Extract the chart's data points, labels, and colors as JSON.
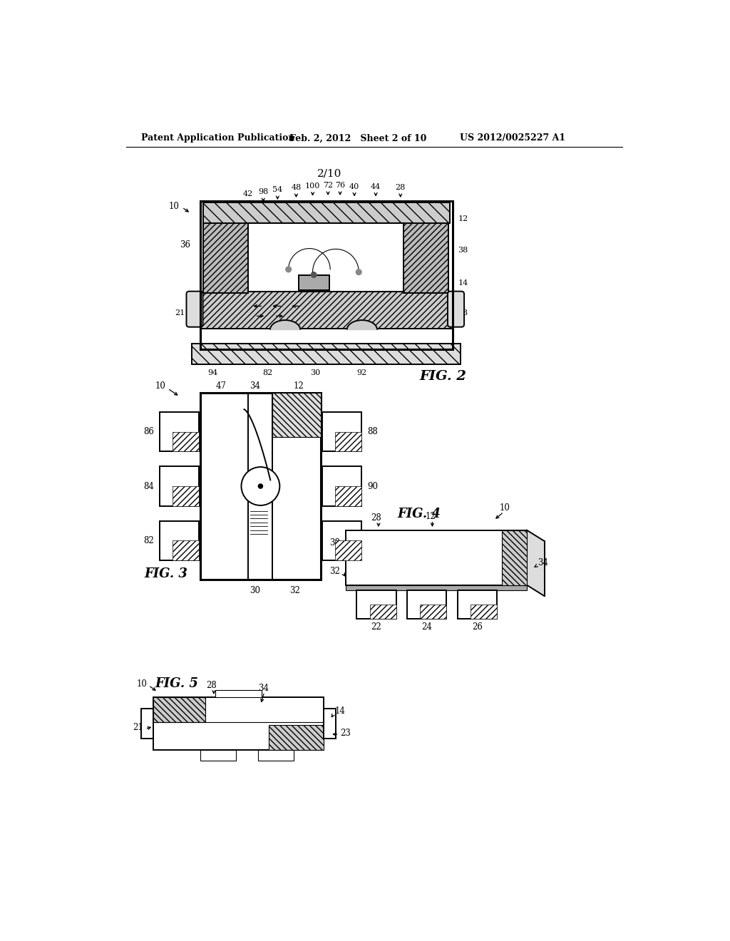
{
  "header_left": "Patent Application Publication",
  "header_mid": "Feb. 2, 2012   Sheet 2 of 10",
  "header_right": "US 2012/0025227 A1",
  "sheet_label": "2/10",
  "fig2_label": "FIG. 2",
  "fig3_label": "FIG. 3",
  "fig4_label": "FIG. 4",
  "fig5_label": "FIG. 5",
  "bg": "#ffffff",
  "lc": "#000000"
}
